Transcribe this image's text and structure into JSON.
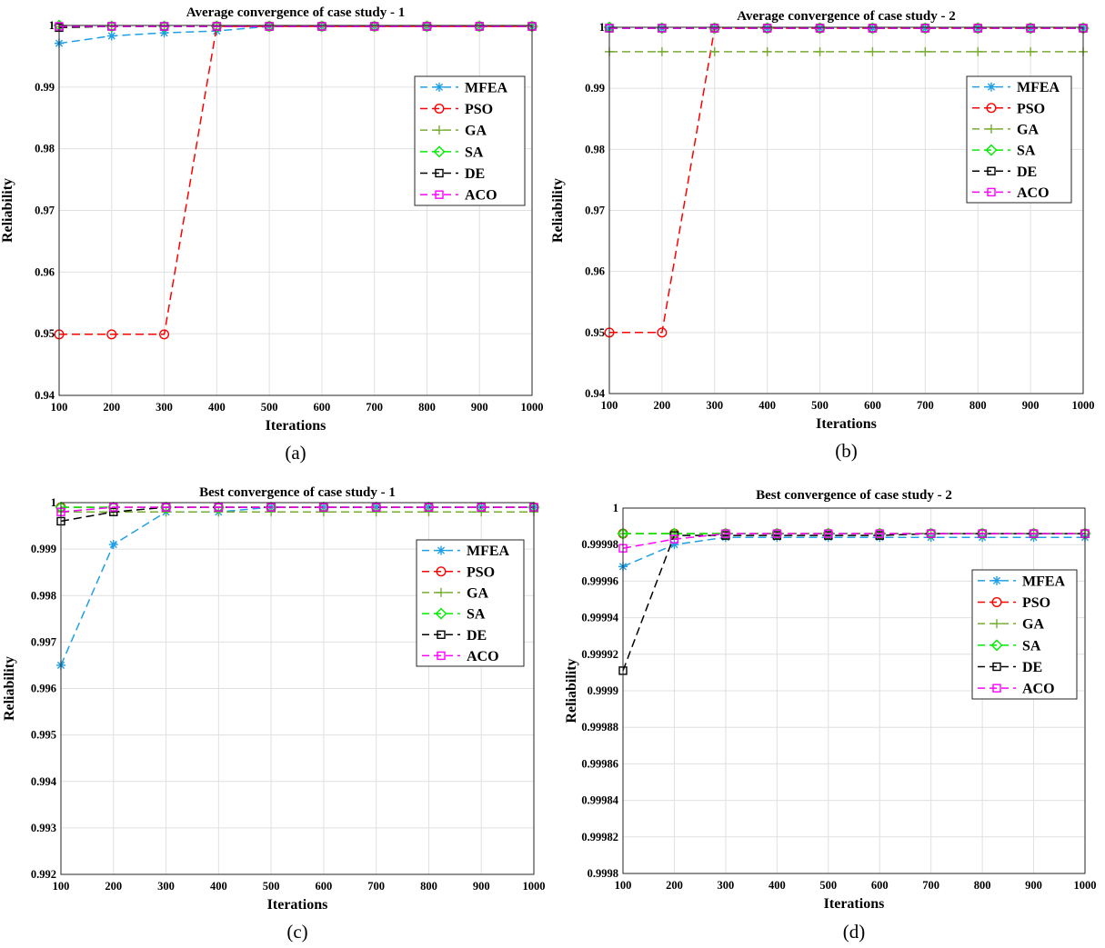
{
  "figure": {
    "captions": [
      "(a)",
      "(b)",
      "(c)",
      "(d)"
    ]
  },
  "legend_entries": [
    "MFEA",
    "PSO",
    "GA",
    "SA",
    "DE",
    "ACO"
  ],
  "series_styles": [
    {
      "name": "MFEA",
      "color": "#1f9fe6",
      "marker": "asterisk"
    },
    {
      "name": "PSO",
      "color": "#ff0000",
      "marker": "circle"
    },
    {
      "name": "GA",
      "color": "#77ac30",
      "marker": "plus"
    },
    {
      "name": "SA",
      "color": "#00ee00",
      "marker": "diamond"
    },
    {
      "name": "DE",
      "color": "#000000",
      "marker": "square"
    },
    {
      "name": "ACO",
      "color": "#ff00ff",
      "marker": "square"
    }
  ],
  "chart_data": [
    {
      "type": "line",
      "title": "Average convergence of case study - 1",
      "xlabel": "Iterations",
      "ylabel": "Reliability",
      "caption": "(a)",
      "x": [
        100,
        200,
        300,
        400,
        500,
        600,
        700,
        800,
        900,
        1000
      ],
      "xticks": [
        "100",
        "200",
        "300",
        "400",
        "500",
        "600",
        "700",
        "800",
        "900",
        "1000"
      ],
      "ylim": [
        0.94,
        1.0
      ],
      "yticks": [
        "0.94",
        "0.95",
        "0.96",
        "0.97",
        "0.98",
        "0.99",
        "1"
      ],
      "ytick_values": [
        0.94,
        0.95,
        0.96,
        0.97,
        0.98,
        0.99,
        1.0
      ],
      "grid": true,
      "legend_position": "right, middle-upper",
      "series": [
        {
          "name": "MFEA",
          "values": [
            0.9971,
            0.9983,
            0.9988,
            0.9991,
            0.99985,
            0.99985,
            0.99985,
            0.99985,
            0.99985,
            0.99985
          ]
        },
        {
          "name": "PSO",
          "values": [
            0.9499,
            0.9499,
            0.9499,
            0.99985,
            0.99985,
            0.99985,
            0.99985,
            0.99985,
            0.99985,
            0.99985
          ]
        },
        {
          "name": "GA",
          "values": [
            0.99985,
            0.99985,
            0.99985,
            0.99985,
            0.99985,
            0.99985,
            0.99985,
            0.99985,
            0.99985,
            0.99985
          ]
        },
        {
          "name": "SA",
          "values": [
            1.0,
            0.99985,
            0.99985,
            0.99985,
            0.99985,
            0.99985,
            0.99985,
            0.99985,
            0.99985,
            0.99985
          ]
        },
        {
          "name": "DE",
          "values": [
            0.99965,
            0.99985,
            0.99985,
            0.99985,
            0.99985,
            0.99985,
            0.99985,
            0.99985,
            0.99985,
            0.99985
          ]
        },
        {
          "name": "ACO",
          "values": [
            0.99985,
            0.99985,
            0.99985,
            0.99985,
            0.99985,
            0.99985,
            0.99985,
            0.99985,
            0.99985,
            0.99985
          ]
        }
      ]
    },
    {
      "type": "line",
      "title": "Average convergence of case study - 2",
      "xlabel": "Iterations",
      "ylabel": "Reliability",
      "caption": "(b)",
      "x": [
        100,
        200,
        300,
        400,
        500,
        600,
        700,
        800,
        900,
        1000
      ],
      "xticks": [
        "100",
        "200",
        "300",
        "400",
        "500",
        "600",
        "700",
        "800",
        "900",
        "1000"
      ],
      "ylim": [
        0.94,
        1.0
      ],
      "yticks": [
        "0.94",
        "0.95",
        "0.96",
        "0.97",
        "0.98",
        "0.99",
        "1"
      ],
      "ytick_values": [
        0.94,
        0.95,
        0.96,
        0.97,
        0.98,
        0.99,
        1.0
      ],
      "grid": true,
      "legend_position": "right, middle-upper",
      "series": [
        {
          "name": "MFEA",
          "values": [
            0.99985,
            0.99985,
            0.99985,
            0.99985,
            0.99985,
            0.99985,
            0.99985,
            0.99985,
            0.99985,
            0.99985
          ]
        },
        {
          "name": "PSO",
          "values": [
            0.95,
            0.95,
            0.99985,
            0.99985,
            0.99985,
            0.99985,
            0.99985,
            0.99985,
            0.99985,
            0.99985
          ]
        },
        {
          "name": "GA",
          "values": [
            0.996,
            0.996,
            0.996,
            0.996,
            0.996,
            0.996,
            0.996,
            0.996,
            0.996,
            0.996
          ]
        },
        {
          "name": "SA",
          "values": [
            1.0,
            0.99985,
            0.99985,
            0.99985,
            0.99985,
            0.99985,
            0.99985,
            0.99985,
            0.99985,
            0.99985
          ]
        },
        {
          "name": "DE",
          "values": [
            0.99985,
            0.99985,
            0.99985,
            0.99985,
            0.99985,
            0.99985,
            0.99985,
            0.99985,
            0.99985,
            0.99985
          ]
        },
        {
          "name": "ACO",
          "values": [
            0.99985,
            0.99985,
            0.99985,
            0.99985,
            0.99985,
            0.99985,
            0.99985,
            0.99985,
            0.99985,
            0.99985
          ]
        }
      ]
    },
    {
      "type": "line",
      "title": "Best convergence of case study - 1",
      "xlabel": "Iterations",
      "ylabel": "Reliability",
      "caption": "(c)",
      "x": [
        100,
        200,
        300,
        400,
        500,
        600,
        700,
        800,
        900,
        1000
      ],
      "xticks": [
        "100",
        "200",
        "300",
        "400",
        "500",
        "600",
        "700",
        "800",
        "900",
        "1000"
      ],
      "ylim": [
        0.992,
        1.0
      ],
      "yticks": [
        "0.992",
        "0.993",
        "0.994",
        "0.995",
        "0.996",
        "0.997",
        "0.998",
        "0.999",
        "1"
      ],
      "ytick_values": [
        0.992,
        0.993,
        0.994,
        0.995,
        0.996,
        0.997,
        0.998,
        0.999,
        1.0
      ],
      "grid": true,
      "legend_position": "right, middle-upper",
      "series": [
        {
          "name": "MFEA",
          "values": [
            0.9965,
            0.9991,
            0.9998,
            0.9998,
            0.9999,
            0.9999,
            0.9999,
            0.9999,
            0.9999,
            0.9999
          ]
        },
        {
          "name": "PSO",
          "values": [
            0.9999,
            0.9999,
            0.9999,
            0.9999,
            0.9999,
            0.9999,
            0.9999,
            0.9999,
            0.9999,
            0.9999
          ]
        },
        {
          "name": "GA",
          "values": [
            0.9998,
            0.9998,
            0.9998,
            0.9998,
            0.9998,
            0.9998,
            0.9998,
            0.9998,
            0.9998,
            0.9998
          ]
        },
        {
          "name": "SA",
          "values": [
            0.9999,
            0.9999,
            0.9999,
            0.9999,
            0.9999,
            0.9999,
            0.9999,
            0.9999,
            0.9999,
            0.9999
          ]
        },
        {
          "name": "DE",
          "values": [
            0.9996,
            0.9998,
            0.9999,
            0.9999,
            0.9999,
            0.9999,
            0.9999,
            0.9999,
            0.9999,
            0.9999
          ]
        },
        {
          "name": "ACO",
          "values": [
            0.9998,
            0.9999,
            0.9999,
            0.9999,
            0.9999,
            0.9999,
            0.9999,
            0.9999,
            0.9999,
            0.9999
          ]
        }
      ]
    },
    {
      "type": "line",
      "title": "Best convergence of case study - 2",
      "xlabel": "Iterations",
      "ylabel": "Reliability",
      "caption": "(d)",
      "x": [
        100,
        200,
        300,
        400,
        500,
        600,
        700,
        800,
        900,
        1000
      ],
      "xticks": [
        "100",
        "200",
        "300",
        "400",
        "500",
        "600",
        "700",
        "800",
        "900",
        "1000"
      ],
      "ylim": [
        0.9998,
        1.0
      ],
      "yticks": [
        "0.9998",
        "0.99982",
        "0.99984",
        "0.99986",
        "0.99988",
        "0.9999",
        "0.99992",
        "0.99994",
        "0.99996",
        "0.99998",
        "1"
      ],
      "ytick_values": [
        0.9998,
        0.99982,
        0.99984,
        0.99986,
        0.99988,
        0.9999,
        0.99992,
        0.99994,
        0.99996,
        0.99998,
        1.0
      ],
      "grid": true,
      "legend_position": "right, middle",
      "series": [
        {
          "name": "MFEA",
          "values": [
            0.999968,
            0.99998,
            0.999984,
            0.999984,
            0.999984,
            0.999984,
            0.999984,
            0.999984,
            0.999984,
            0.999984
          ]
        },
        {
          "name": "PSO",
          "values": [
            0.999986,
            0.999986,
            0.999986,
            0.999986,
            0.999986,
            0.999986,
            0.999986,
            0.999986,
            0.999986,
            0.999986
          ]
        },
        {
          "name": "GA",
          "values": [
            0.999986,
            0.999986,
            0.999986,
            0.999986,
            0.999986,
            0.999986,
            0.999986,
            0.999986,
            0.999986,
            0.999986
          ]
        },
        {
          "name": "SA",
          "values": [
            0.999986,
            0.999986,
            0.999986,
            0.999986,
            0.999986,
            0.999986,
            0.999986,
            0.999986,
            0.999986,
            0.999986
          ]
        },
        {
          "name": "DE",
          "values": [
            0.999911,
            0.999985,
            0.999985,
            0.999985,
            0.999985,
            0.999985,
            0.999986,
            0.999986,
            0.999986,
            0.999986
          ]
        },
        {
          "name": "ACO",
          "values": [
            0.999978,
            0.999983,
            0.999986,
            0.999986,
            0.999986,
            0.999986,
            0.999986,
            0.999986,
            0.999986,
            0.999986
          ]
        }
      ]
    }
  ]
}
